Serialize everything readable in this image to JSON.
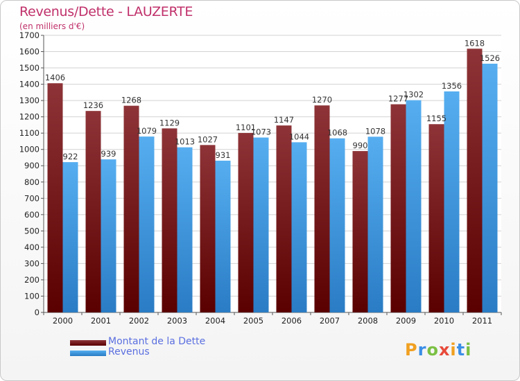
{
  "chart_data": {
    "type": "bar",
    "title": "Revenus/Dette - LAUZERTE",
    "subtitle": "(en milliers d'€)",
    "categories": [
      "2000",
      "2001",
      "2002",
      "2003",
      "2004",
      "2005",
      "2006",
      "2007",
      "2008",
      "2009",
      "2010",
      "2011"
    ],
    "series": [
      {
        "name": "Montant de la Dette",
        "color": "#7a1a1a",
        "values": [
          1406,
          1236,
          1268,
          1129,
          1027,
          1101,
          1147,
          1270,
          990,
          1277,
          1155,
          1618
        ]
      },
      {
        "name": "Revenus",
        "color": "#3d9ae2",
        "values": [
          922,
          939,
          1079,
          1013,
          931,
          1073,
          1044,
          1068,
          1078,
          1302,
          1356,
          1526
        ]
      }
    ],
    "yticks": [
      0,
      100,
      200,
      300,
      400,
      500,
      600,
      700,
      800,
      900,
      1000,
      1100,
      1200,
      1300,
      1400,
      1500,
      1600,
      1700
    ],
    "ylim": [
      0,
      1700
    ],
    "grid": true,
    "legend_position": "bottom-left"
  },
  "logo": {
    "letters": [
      "P",
      "r",
      "o",
      "x",
      "i",
      "t",
      "i"
    ],
    "colors": [
      "#f0a020",
      "#3a8ee6",
      "#7bc043",
      "#e84a3a",
      "#f0a020",
      "#3a8ee6",
      "#7bc043"
    ]
  }
}
